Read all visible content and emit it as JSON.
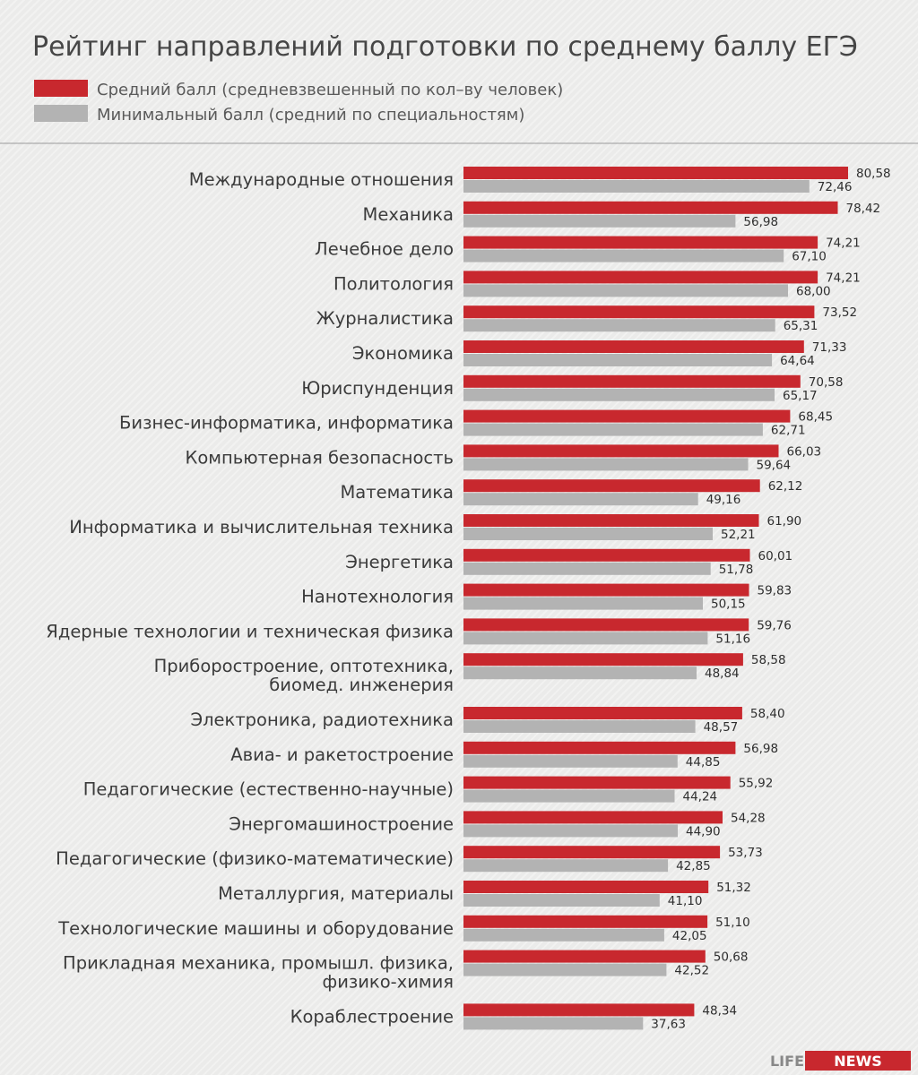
{
  "chart_data": {
    "type": "bar",
    "orientation": "horizontal",
    "title": "Рейтинг направлений подготовки по среднему баллу ЕГЭ",
    "categories": [
      [
        "Международные отношения"
      ],
      [
        "Механика"
      ],
      [
        "Лечебное дело"
      ],
      [
        "Политология"
      ],
      [
        "Журналистика"
      ],
      [
        "Экономика"
      ],
      [
        "Юриспунденция"
      ],
      [
        "Бизнес-информатика, информатика"
      ],
      [
        "Компьютерная безопасность"
      ],
      [
        "Математика"
      ],
      [
        "Информатика и вычислительная техника"
      ],
      [
        "Энергетика"
      ],
      [
        "Нанотехнология"
      ],
      [
        "Ядерные технологии и техническая физика"
      ],
      [
        "Приборостроение, оптотехника,",
        "биомед. инженерия"
      ],
      [
        "Электроника, радиотехника"
      ],
      [
        "Авиа- и ракетостроение"
      ],
      [
        "Педагогические (естественно-научные)"
      ],
      [
        "Энергомашиностроение"
      ],
      [
        "Педагогические (физико-математические)"
      ],
      [
        "Металлургия, материалы"
      ],
      [
        "Технологические машины и оборудование"
      ],
      [
        "Прикладная механика, промышл. физика,",
        "физико-химия"
      ],
      [
        "Кораблестроение"
      ]
    ],
    "series": [
      {
        "name": "Средний балл (средневзвешенный по кол–ву человек)",
        "color": "#c8282e",
        "values": [
          80.58,
          78.42,
          74.21,
          74.21,
          73.52,
          71.33,
          70.58,
          68.45,
          66.03,
          62.12,
          61.9,
          60.01,
          59.83,
          59.76,
          58.58,
          58.4,
          56.98,
          55.92,
          54.28,
          53.73,
          51.32,
          51.1,
          50.68,
          48.34
        ],
        "labels": [
          "80,58",
          "78,42",
          "74,21",
          "74,21",
          "73,52",
          "71,33",
          "70,58",
          "68,45",
          "66,03",
          "62,12",
          "61,90",
          "60,01",
          "59,83",
          "59,76",
          "58,58",
          "58,40",
          "56,98",
          "55,92",
          "54,28",
          "53,73",
          "51,32",
          "51,10",
          "50,68",
          "48,34"
        ]
      },
      {
        "name": "Минимальный балл (средний по специальностям)",
        "color": "#b3b3b3",
        "values": [
          72.46,
          56.98,
          67.1,
          68.0,
          65.31,
          64.64,
          65.17,
          62.71,
          59.64,
          49.16,
          52.21,
          51.78,
          50.15,
          51.16,
          48.84,
          48.57,
          44.85,
          44.24,
          44.9,
          42.85,
          41.1,
          42.05,
          42.52,
          37.63
        ],
        "labels": [
          "72,46",
          "56,98",
          "67,10",
          "68,00",
          "65,31",
          "64,64",
          "65,17",
          "62,71",
          "59,64",
          "49,16",
          "52,21",
          "51,78",
          "50,15",
          "51,16",
          "48,84",
          "48,57",
          "44,85",
          "44,24",
          "44,90",
          "42,85",
          "41,10",
          "42,05",
          "42,52",
          "37,63"
        ]
      }
    ],
    "xlim": [
      0,
      80.58
    ],
    "legend": "top-left",
    "grid": false
  },
  "logo": {
    "part1": "LIFE",
    "part2": "NEWS",
    "color": "#c8282e"
  }
}
